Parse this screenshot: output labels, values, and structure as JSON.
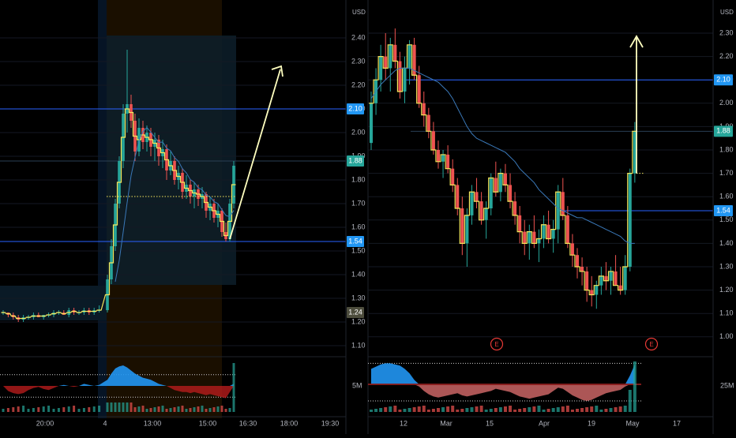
{
  "colors": {
    "background": "#000000",
    "grid": "#141923",
    "up": "#26a69a",
    "down": "#ef5350",
    "hline": "#2962ff",
    "price_badge": "#2196f3",
    "last_badge": "#26a69a",
    "open_badge": "#4d4d3d",
    "arrow": "#ffffc0",
    "ma": "#3a78b8",
    "step": "#f5e65b",
    "session_bg": "#1a0f00",
    "range_box": "#0d1e2a",
    "axis_text": "#b2b5be"
  },
  "chart_data": [
    {
      "type": "candlestick",
      "panel": "left",
      "timeframe": "intraday",
      "currency": "USD",
      "y_ticks": [
        "2.40",
        "2.30",
        "2.20",
        "2.10",
        "2.00",
        "1.90",
        "1.80",
        "1.70",
        "1.60",
        "1.50",
        "1.40",
        "1.30",
        "1.20",
        "1.10"
      ],
      "ylim": [
        1.05,
        2.45
      ],
      "x_ticks": [
        "20:00",
        "4",
        "13:00",
        "15:00",
        "16:30",
        "18:00",
        "19:30"
      ],
      "price_lines": [
        2.1,
        1.88,
        1.54
      ],
      "price_labels": [
        "2.10",
        "1.88",
        "1.54",
        "1.24"
      ],
      "dotted_level": 1.73,
      "ohlc": [
        [
          1.24,
          1.25,
          1.23,
          1.24
        ],
        [
          1.24,
          1.24,
          1.22,
          1.23
        ],
        [
          1.23,
          1.24,
          1.21,
          1.22
        ],
        [
          1.22,
          1.23,
          1.2,
          1.21
        ],
        [
          1.21,
          1.23,
          1.2,
          1.22
        ],
        [
          1.22,
          1.23,
          1.21,
          1.22
        ],
        [
          1.22,
          1.24,
          1.21,
          1.23
        ],
        [
          1.23,
          1.24,
          1.22,
          1.22
        ],
        [
          1.22,
          1.23,
          1.21,
          1.23
        ],
        [
          1.23,
          1.24,
          1.22,
          1.23
        ],
        [
          1.23,
          1.25,
          1.22,
          1.24
        ],
        [
          1.24,
          1.25,
          1.23,
          1.24
        ],
        [
          1.24,
          1.25,
          1.23,
          1.23
        ],
        [
          1.23,
          1.26,
          1.22,
          1.25
        ],
        [
          1.25,
          1.26,
          1.23,
          1.24
        ],
        [
          1.24,
          1.25,
          1.23,
          1.24
        ],
        [
          1.24,
          1.26,
          1.23,
          1.25
        ],
        [
          1.25,
          1.26,
          1.23,
          1.24
        ],
        [
          1.24,
          1.26,
          1.23,
          1.25
        ],
        [
          1.25,
          1.27,
          1.24,
          1.25
        ],
        [
          1.25,
          1.4,
          1.24,
          1.38
        ],
        [
          1.38,
          1.55,
          1.36,
          1.52
        ],
        [
          1.52,
          1.72,
          1.5,
          1.7
        ],
        [
          1.7,
          1.9,
          1.68,
          1.88
        ],
        [
          1.88,
          2.12,
          1.85,
          2.08
        ],
        [
          2.08,
          2.35,
          2.0,
          2.12
        ],
        [
          2.12,
          2.16,
          2.02,
          2.05
        ],
        [
          2.05,
          2.08,
          1.88,
          1.92
        ],
        [
          1.92,
          2.06,
          1.9,
          2.02
        ],
        [
          2.02,
          2.05,
          1.93,
          1.96
        ],
        [
          1.96,
          2.03,
          1.92,
          2.0
        ],
        [
          2.0,
          2.02,
          1.9,
          1.94
        ],
        [
          1.94,
          2.0,
          1.88,
          1.97
        ],
        [
          1.97,
          1.99,
          1.86,
          1.9
        ],
        [
          1.9,
          1.97,
          1.85,
          1.93
        ],
        [
          1.93,
          1.95,
          1.8,
          1.84
        ],
        [
          1.84,
          1.92,
          1.82,
          1.88
        ],
        [
          1.88,
          1.9,
          1.78,
          1.8
        ],
        [
          1.8,
          1.86,
          1.76,
          1.83
        ],
        [
          1.83,
          1.85,
          1.72,
          1.75
        ],
        [
          1.75,
          1.82,
          1.72,
          1.78
        ],
        [
          1.78,
          1.8,
          1.7,
          1.73
        ],
        [
          1.73,
          1.79,
          1.68,
          1.76
        ],
        [
          1.76,
          1.78,
          1.69,
          1.72
        ],
        [
          1.72,
          1.77,
          1.68,
          1.74
        ],
        [
          1.74,
          1.75,
          1.64,
          1.67
        ],
        [
          1.67,
          1.73,
          1.63,
          1.7
        ],
        [
          1.7,
          1.72,
          1.62,
          1.64
        ],
        [
          1.64,
          1.7,
          1.6,
          1.67
        ],
        [
          1.67,
          1.68,
          1.56,
          1.58
        ],
        [
          1.58,
          1.62,
          1.54,
          1.55
        ],
        [
          1.55,
          1.72,
          1.54,
          1.7
        ],
        [
          1.7,
          1.88,
          1.68,
          1.86
        ]
      ],
      "oscillator": {
        "upper_band": 0.55,
        "lower_band": -0.55,
        "values": [
          0.0,
          -0.25,
          -0.35,
          -0.4,
          -0.35,
          -0.2,
          -0.1,
          -0.05,
          -0.15,
          -0.2,
          -0.1,
          0.0,
          0.05,
          0.0,
          -0.05,
          0.0,
          0.1,
          0.05,
          0.0,
          0.05,
          0.3,
          0.6,
          0.85,
          0.95,
          1.0,
          0.9,
          0.75,
          0.6,
          0.5,
          0.4,
          0.35,
          0.3,
          0.2,
          0.1,
          0.05,
          0.0,
          -0.1,
          -0.2,
          -0.25,
          -0.3,
          -0.3,
          -0.35,
          -0.3,
          -0.35,
          -0.4,
          -0.45,
          -0.4,
          -0.45,
          -0.5,
          -0.55,
          -0.6,
          -0.3,
          0.1
        ]
      }
    },
    {
      "type": "candlestick",
      "panel": "right",
      "timeframe": "daily",
      "currency": "USD",
      "y_ticks": [
        "2.30",
        "2.20",
        "2.10",
        "2.00",
        "1.90",
        "1.80",
        "1.70",
        "1.60",
        "1.50",
        "1.40",
        "1.30",
        "1.20",
        "1.10",
        "1.00"
      ],
      "ylim": [
        0.98,
        2.36
      ],
      "x_ticks": [
        "12",
        "Mar",
        "15",
        "Apr",
        "19",
        "May",
        "17"
      ],
      "price_lines": [
        2.1,
        1.88,
        1.54
      ],
      "price_labels": [
        "2.10",
        "1.88",
        "1.54"
      ],
      "dotted_level": 1.7,
      "earnings_markers": [
        "E",
        "E"
      ],
      "volume_label": "25M",
      "left_volume_label": "5M",
      "ohlc": [
        [
          1.83,
          2.05,
          1.8,
          2.0
        ],
        [
          2.0,
          2.15,
          1.95,
          2.1
        ],
        [
          2.1,
          2.25,
          2.05,
          2.2
        ],
        [
          2.2,
          2.3,
          2.1,
          2.15
        ],
        [
          2.15,
          2.28,
          2.05,
          2.25
        ],
        [
          2.25,
          2.32,
          2.15,
          2.18
        ],
        [
          2.18,
          2.22,
          2.02,
          2.05
        ],
        [
          2.05,
          2.2,
          2.0,
          2.15
        ],
        [
          2.15,
          2.27,
          2.08,
          2.25
        ],
        [
          2.25,
          2.28,
          2.1,
          2.12
        ],
        [
          2.12,
          2.16,
          1.98,
          2.0
        ],
        [
          2.0,
          2.05,
          1.9,
          1.95
        ],
        [
          1.95,
          1.98,
          1.85,
          1.88
        ],
        [
          1.88,
          1.92,
          1.78,
          1.8
        ],
        [
          1.8,
          1.84,
          1.72,
          1.75
        ],
        [
          1.75,
          1.8,
          1.68,
          1.78
        ],
        [
          1.78,
          1.82,
          1.7,
          1.72
        ],
        [
          1.72,
          1.76,
          1.62,
          1.65
        ],
        [
          1.65,
          1.68,
          1.52,
          1.55
        ],
        [
          1.55,
          1.6,
          1.35,
          1.4
        ],
        [
          1.4,
          1.55,
          1.3,
          1.52
        ],
        [
          1.52,
          1.65,
          1.48,
          1.62
        ],
        [
          1.62,
          1.68,
          1.55,
          1.58
        ],
        [
          1.58,
          1.62,
          1.48,
          1.5
        ],
        [
          1.5,
          1.58,
          1.42,
          1.55
        ],
        [
          1.55,
          1.7,
          1.52,
          1.68
        ],
        [
          1.68,
          1.75,
          1.6,
          1.62
        ],
        [
          1.62,
          1.72,
          1.58,
          1.7
        ],
        [
          1.7,
          1.74,
          1.62,
          1.65
        ],
        [
          1.65,
          1.7,
          1.55,
          1.58
        ],
        [
          1.58,
          1.62,
          1.48,
          1.52
        ],
        [
          1.52,
          1.56,
          1.4,
          1.45
        ],
        [
          1.45,
          1.5,
          1.35,
          1.4
        ],
        [
          1.4,
          1.48,
          1.33,
          1.45
        ],
        [
          1.45,
          1.52,
          1.38,
          1.4
        ],
        [
          1.4,
          1.46,
          1.32,
          1.42
        ],
        [
          1.42,
          1.52,
          1.38,
          1.48
        ],
        [
          1.48,
          1.54,
          1.4,
          1.42
        ],
        [
          1.42,
          1.5,
          1.36,
          1.46
        ],
        [
          1.46,
          1.65,
          1.4,
          1.62
        ],
        [
          1.62,
          1.68,
          1.5,
          1.52
        ],
        [
          1.52,
          1.56,
          1.38,
          1.4
        ],
        [
          1.4,
          1.44,
          1.3,
          1.35
        ],
        [
          1.35,
          1.38,
          1.25,
          1.3
        ],
        [
          1.3,
          1.34,
          1.22,
          1.28
        ],
        [
          1.28,
          1.3,
          1.15,
          1.2
        ],
        [
          1.2,
          1.26,
          1.13,
          1.18
        ],
        [
          1.18,
          1.24,
          1.12,
          1.22
        ],
        [
          1.22,
          1.3,
          1.18,
          1.26
        ],
        [
          1.26,
          1.32,
          1.2,
          1.24
        ],
        [
          1.24,
          1.3,
          1.18,
          1.28
        ],
        [
          1.28,
          1.35,
          1.22,
          1.22
        ],
        [
          1.22,
          1.3,
          1.18,
          1.2
        ],
        [
          1.2,
          1.35,
          1.18,
          1.3
        ],
        [
          1.3,
          1.72,
          1.28,
          1.7
        ],
        [
          1.7,
          1.92,
          1.66,
          1.88
        ]
      ],
      "ma": [
        2.02,
        2.05,
        2.08,
        2.1,
        2.12,
        2.14,
        2.15,
        2.15,
        2.15,
        2.14,
        2.13,
        2.12,
        2.11,
        2.1,
        2.09,
        2.07,
        2.05,
        2.02,
        1.98,
        1.94,
        1.9,
        1.87,
        1.85,
        1.84,
        1.83,
        1.82,
        1.81,
        1.8,
        1.79,
        1.77,
        1.75,
        1.72,
        1.7,
        1.68,
        1.66,
        1.63,
        1.61,
        1.59,
        1.57,
        1.55,
        1.54,
        1.53,
        1.52,
        1.51,
        1.51,
        1.5,
        1.49,
        1.48,
        1.47,
        1.46,
        1.45,
        1.44,
        1.43,
        1.41,
        1.4,
        1.4
      ],
      "oscillator": {
        "upper_band": 0.0,
        "lower_band": -0.75,
        "values": [
          0.7,
          0.8,
          0.9,
          0.95,
          0.95,
          0.9,
          0.85,
          0.7,
          0.5,
          0.2,
          -0.1,
          -0.3,
          -0.45,
          -0.55,
          -0.6,
          -0.55,
          -0.5,
          -0.45,
          -0.4,
          -0.5,
          -0.55,
          -0.5,
          -0.45,
          -0.4,
          -0.35,
          -0.3,
          -0.2,
          -0.25,
          -0.3,
          -0.35,
          -0.45,
          -0.55,
          -0.6,
          -0.65,
          -0.6,
          -0.55,
          -0.5,
          -0.45,
          -0.3,
          -0.15,
          -0.2,
          -0.35,
          -0.5,
          -0.6,
          -0.7,
          -0.75,
          -0.7,
          -0.6,
          -0.5,
          -0.4,
          -0.35,
          -0.3,
          -0.25,
          -0.1,
          0.4,
          0.9
        ]
      }
    }
  ]
}
